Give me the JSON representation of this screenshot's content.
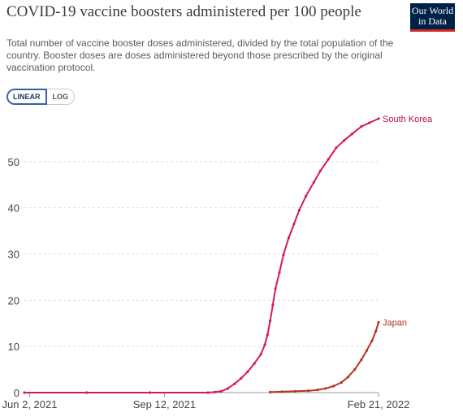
{
  "header": {
    "title": "COVID-19 vaccine boosters administered per 100 people",
    "subtitle": "Total number of vaccine booster doses administered, divided by the total population of the country. Booster doses are doses administered beyond those prescribed by the original vaccination protocol.",
    "logo_line1": "Our World",
    "logo_line2": "in Data",
    "logo_color": "#002147"
  },
  "controls": {
    "linear_label": "LINEAR",
    "log_label": "LOG",
    "selected": "LINEAR"
  },
  "chart_data": {
    "type": "line",
    "x_axis": {
      "type": "date",
      "range": [
        "2021-05-29",
        "2022-02-21"
      ],
      "tick_labels": [
        "Jun 2, 2021",
        "Sep 12, 2021",
        "Feb 21, 2022"
      ],
      "tick_dates": [
        "2021-06-02",
        "2021-09-12",
        "2022-02-21"
      ]
    },
    "y_axis": {
      "range": [
        0,
        60
      ],
      "ticks": [
        0,
        10,
        20,
        30,
        40,
        50
      ],
      "grid": true
    },
    "series": [
      {
        "name": "South Korea",
        "color": "#d6185c",
        "label_color": "#b1123f",
        "points": [
          [
            "2021-05-29",
            0
          ],
          [
            "2021-07-15",
            0
          ],
          [
            "2021-09-01",
            0
          ],
          [
            "2021-10-15",
            0
          ],
          [
            "2021-10-20",
            0.1
          ],
          [
            "2021-10-25",
            0.3
          ],
          [
            "2021-10-30",
            0.9
          ],
          [
            "2021-11-04",
            1.9
          ],
          [
            "2021-11-09",
            3.1
          ],
          [
            "2021-11-14",
            4.5
          ],
          [
            "2021-11-19",
            6.3
          ],
          [
            "2021-11-24",
            8.3
          ],
          [
            "2021-11-27",
            10.4
          ],
          [
            "2021-11-29",
            12.5
          ],
          [
            "2021-12-01",
            15.5
          ],
          [
            "2021-12-03",
            19.0
          ],
          [
            "2021-12-05",
            22.5
          ],
          [
            "2021-12-08",
            26.0
          ],
          [
            "2021-12-11",
            29.8
          ],
          [
            "2021-12-15",
            33.5
          ],
          [
            "2021-12-19",
            36.5
          ],
          [
            "2021-12-23",
            39.5
          ],
          [
            "2021-12-28",
            42.5
          ],
          [
            "2022-01-03",
            45.5
          ],
          [
            "2022-01-08",
            48.0
          ],
          [
            "2022-01-14",
            50.5
          ],
          [
            "2022-01-20",
            53.0
          ],
          [
            "2022-01-26",
            54.6
          ],
          [
            "2022-02-01",
            56.0
          ],
          [
            "2022-02-08",
            57.6
          ],
          [
            "2022-02-14",
            58.4
          ],
          [
            "2022-02-21",
            59.3
          ]
        ]
      },
      {
        "name": "Japan",
        "color": "#b5351f",
        "label_color": "#b5351f",
        "points": [
          [
            "2021-12-01",
            0.1
          ],
          [
            "2021-12-10",
            0.2
          ],
          [
            "2021-12-20",
            0.3
          ],
          [
            "2021-12-30",
            0.4
          ],
          [
            "2022-01-06",
            0.6
          ],
          [
            "2022-01-12",
            0.9
          ],
          [
            "2022-01-18",
            1.4
          ],
          [
            "2022-01-24",
            2.2
          ],
          [
            "2022-01-29",
            3.4
          ],
          [
            "2022-02-03",
            5.0
          ],
          [
            "2022-02-08",
            7.1
          ],
          [
            "2022-02-12",
            9.1
          ],
          [
            "2022-02-16",
            11.2
          ],
          [
            "2022-02-19",
            13.3
          ],
          [
            "2022-02-21",
            15.2
          ]
        ]
      }
    ]
  }
}
